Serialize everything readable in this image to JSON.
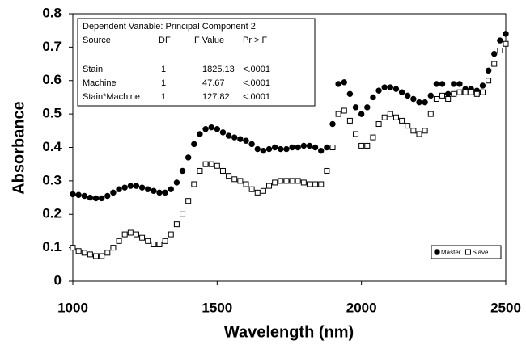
{
  "chart_data": {
    "type": "scatter",
    "xlabel": "Wavelength (nm)",
    "ylabel": "Absorbance",
    "xlim": [
      1000,
      2500
    ],
    "xticks": [
      1000,
      1500,
      2000,
      2500
    ],
    "ylim": [
      0,
      0.8
    ],
    "yticks": [
      0,
      0.1,
      0.2,
      0.3,
      0.4,
      0.5,
      0.6,
      0.7,
      0.8
    ],
    "legend": "bottom-right",
    "x": [
      1000,
      1020,
      1040,
      1060,
      1080,
      1100,
      1120,
      1140,
      1160,
      1180,
      1200,
      1220,
      1240,
      1260,
      1280,
      1300,
      1320,
      1340,
      1360,
      1380,
      1400,
      1420,
      1440,
      1460,
      1480,
      1500,
      1520,
      1540,
      1560,
      1580,
      1600,
      1620,
      1640,
      1660,
      1680,
      1700,
      1720,
      1740,
      1760,
      1780,
      1800,
      1820,
      1840,
      1860,
      1880,
      1900,
      1920,
      1940,
      1960,
      1980,
      2000,
      2020,
      2040,
      2060,
      2080,
      2100,
      2120,
      2140,
      2160,
      2180,
      2200,
      2220,
      2240,
      2260,
      2280,
      2300,
      2320,
      2340,
      2360,
      2380,
      2400,
      2420,
      2440,
      2460,
      2480,
      2500
    ],
    "series": [
      {
        "name": "Master",
        "color": "#000000",
        "marker": "circle",
        "filled": true,
        "values": [
          0.26,
          0.258,
          0.255,
          0.25,
          0.248,
          0.248,
          0.255,
          0.265,
          0.275,
          0.28,
          0.285,
          0.285,
          0.28,
          0.275,
          0.27,
          0.265,
          0.265,
          0.275,
          0.295,
          0.33,
          0.37,
          0.41,
          0.44,
          0.455,
          0.46,
          0.455,
          0.445,
          0.435,
          0.43,
          0.425,
          0.42,
          0.41,
          0.395,
          0.39,
          0.395,
          0.4,
          0.395,
          0.395,
          0.4,
          0.4,
          0.405,
          0.405,
          0.4,
          0.39,
          0.4,
          0.47,
          0.59,
          0.595,
          0.56,
          0.52,
          0.5,
          0.52,
          0.55,
          0.57,
          0.58,
          0.58,
          0.575,
          0.565,
          0.555,
          0.545,
          0.535,
          0.535,
          0.555,
          0.59,
          0.59,
          0.56,
          0.59,
          0.59,
          0.575,
          0.575,
          0.57,
          0.585,
          0.63,
          0.68,
          0.72,
          0.74
        ]
      },
      {
        "name": "Slave",
        "color": "#000000",
        "marker": "square",
        "filled": false,
        "values": [
          0.1,
          0.09,
          0.085,
          0.08,
          0.075,
          0.075,
          0.085,
          0.1,
          0.12,
          0.14,
          0.145,
          0.14,
          0.13,
          0.12,
          0.11,
          0.11,
          0.12,
          0.14,
          0.17,
          0.2,
          0.24,
          0.29,
          0.33,
          0.35,
          0.35,
          0.345,
          0.33,
          0.315,
          0.305,
          0.3,
          0.29,
          0.275,
          0.265,
          0.27,
          0.285,
          0.295,
          0.3,
          0.3,
          0.3,
          0.3,
          0.295,
          0.29,
          0.29,
          0.29,
          0.33,
          0.4,
          0.5,
          0.51,
          0.48,
          0.44,
          0.405,
          0.405,
          0.43,
          0.47,
          0.49,
          0.5,
          0.49,
          0.48,
          0.465,
          0.45,
          0.44,
          0.45,
          0.5,
          0.545,
          0.555,
          0.545,
          0.56,
          0.565,
          0.565,
          0.565,
          0.56,
          0.565,
          0.6,
          0.65,
          0.69,
          0.71
        ]
      }
    ],
    "inset_table": {
      "title": "Dependent Variable: Principal Component 2",
      "columns": [
        "Source",
        "DF",
        "F Value",
        "Pr > F"
      ],
      "rows": [
        [
          "Stain",
          "1",
          "1825.13",
          "<.0001"
        ],
        [
          "Machine",
          "1",
          "47.67",
          "<.0001"
        ],
        [
          "Stain*Machine",
          "1",
          "127.82",
          "<.0001"
        ]
      ]
    }
  }
}
